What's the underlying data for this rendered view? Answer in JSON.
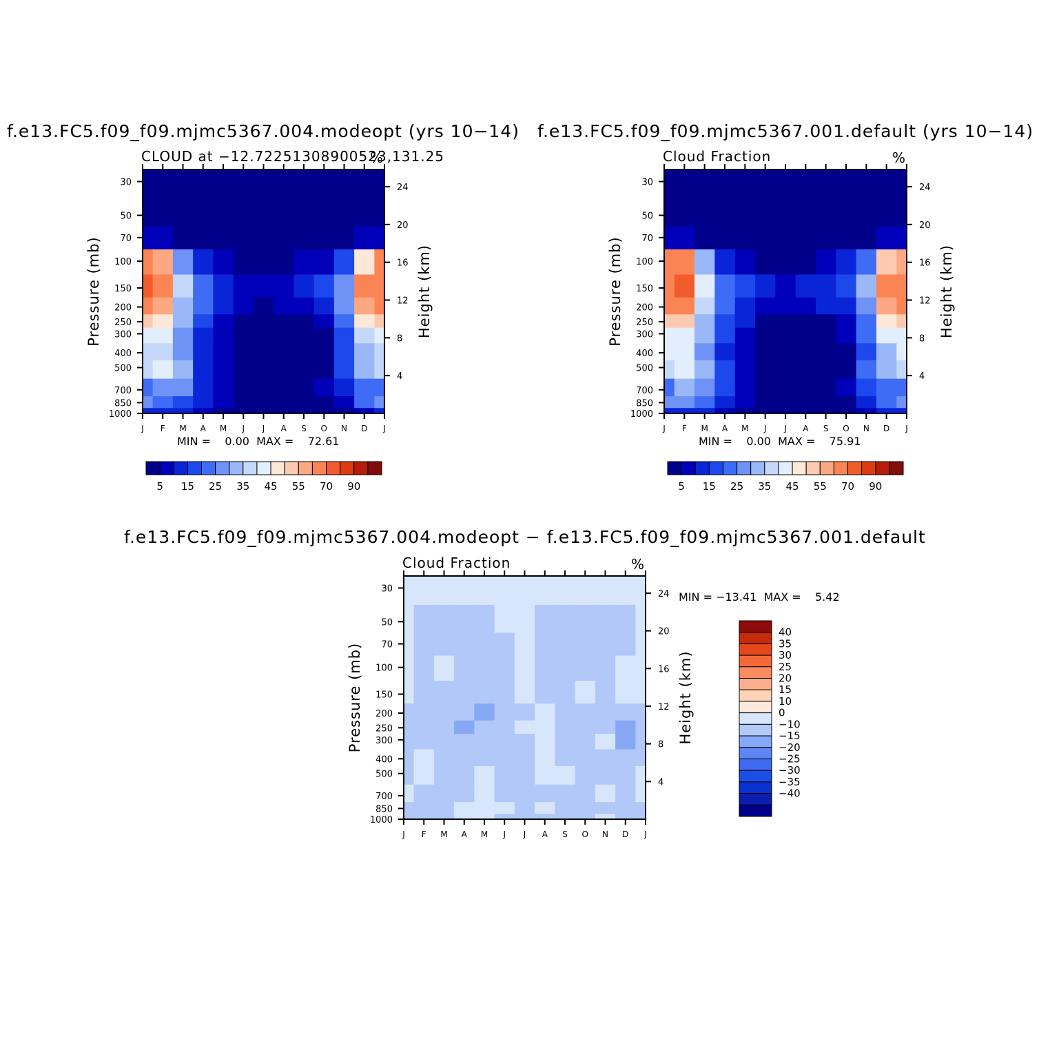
{
  "panels": [
    {
      "title": "f.e13.FC5.f09_f09.mjmc5367.004.modeopt (yrs 10−14)",
      "subtitle_left": "CLOUD at −12.72251308900523,131.25",
      "subtitle_right": "%",
      "ylabel_left": "Pressure (mb)",
      "ylabel_right": "Height (km)",
      "minmax_text": "MIN =    0.00  MAX =    72.61"
    },
    {
      "title": "f.e13.FC5.f09_f09.mjmc5367.001.default (yrs 10−14)",
      "subtitle_left": "Cloud Fraction",
      "subtitle_right": "%",
      "ylabel_left": "Pressure (mb)",
      "ylabel_right": "Height (km)",
      "minmax_text": "MIN =    0.00  MAX =    75.91"
    },
    {
      "title": "f.e13.FC5.f09_f09.mjmc5367.004.modeopt − f.e13.FC5.f09_f09.mjmc5367.001.default",
      "subtitle_left": "Cloud Fraction",
      "subtitle_right": "%",
      "ylabel_left": "Pressure (mb)",
      "ylabel_right": "Height (km)",
      "minmax_text": "MIN = −13.41  MAX =    5.42"
    }
  ],
  "chart_data": [
    {
      "type": "heatmap",
      "title": "f.e13.FC5.f09_f09.mjmc5367.004.modeopt (yrs 10−14)",
      "subtitle": "CLOUD at −12.72251308900523,131.25",
      "units": "%",
      "xlabel": "",
      "ylabel": "Pressure (mb)",
      "ylabel_right": "Height (km)",
      "x_categories": [
        "J",
        "F",
        "M",
        "A",
        "M",
        "J",
        "J",
        "A",
        "S",
        "O",
        "N",
        "D",
        "J"
      ],
      "y_pressure_ticks": [
        30,
        50,
        70,
        100,
        150,
        200,
        250,
        300,
        400,
        500,
        700,
        850,
        1000
      ],
      "y_height_ticks": [
        4,
        8,
        12,
        16,
        20,
        24
      ],
      "ylim": [
        1000,
        25
      ],
      "y_scale": "log",
      "levels_pressure": [
        30,
        50,
        70,
        100,
        150,
        200,
        250,
        300,
        400,
        500,
        700,
        850,
        1000
      ],
      "values": [
        [
          0,
          0,
          0,
          0,
          0,
          0,
          0,
          0,
          0,
          0,
          0,
          0,
          0
        ],
        [
          0,
          0,
          0,
          0,
          0,
          0,
          0,
          0,
          0,
          0,
          0,
          0,
          0
        ],
        [
          8,
          7,
          4,
          2,
          1,
          0,
          0,
          0,
          0,
          1,
          3,
          6,
          8
        ],
        [
          62,
          55,
          28,
          12,
          6,
          3,
          2,
          3,
          5,
          8,
          18,
          48,
          60
        ],
        [
          70,
          66,
          38,
          22,
          14,
          9,
          7,
          8,
          12,
          16,
          28,
          62,
          68
        ],
        [
          65,
          58,
          34,
          20,
          12,
          6,
          4,
          5,
          8,
          12,
          26,
          56,
          63
        ],
        [
          52,
          46,
          30,
          16,
          9,
          3,
          2,
          2,
          3,
          6,
          22,
          46,
          52
        ],
        [
          42,
          40,
          28,
          14,
          7,
          2,
          1,
          1,
          2,
          4,
          18,
          38,
          42
        ],
        [
          38,
          38,
          26,
          12,
          5,
          1,
          1,
          1,
          1,
          3,
          16,
          32,
          38
        ],
        [
          36,
          42,
          30,
          14,
          6,
          2,
          1,
          1,
          1,
          4,
          18,
          30,
          36
        ],
        [
          22,
          28,
          26,
          14,
          7,
          3,
          2,
          2,
          3,
          6,
          14,
          20,
          22
        ],
        [
          26,
          24,
          18,
          10,
          5,
          2,
          1,
          1,
          2,
          4,
          8,
          22,
          26
        ],
        [
          12,
          12,
          10,
          7,
          4,
          1,
          0,
          0,
          1,
          2,
          4,
          8,
          12
        ]
      ],
      "zlim": [
        0,
        72.61
      ],
      "colorbar": {
        "levels": [
          5,
          10,
          15,
          20,
          25,
          30,
          35,
          40,
          45,
          50,
          55,
          60,
          70,
          80,
          90
        ],
        "labels": [
          "5",
          "15",
          "25",
          "35",
          "45",
          "55",
          "70",
          "90"
        ],
        "colors": [
          "#00008b",
          "#0000bb",
          "#0a25d8",
          "#1c48ee",
          "#3f6cf5",
          "#6e92f5",
          "#9ab8f7",
          "#c4d8fa",
          "#e3eefc",
          "#fde8d8",
          "#fdcab0",
          "#fca882",
          "#fb8455",
          "#f25c2d",
          "#dd3b12",
          "#b61c0a",
          "#820c0c"
        ]
      },
      "min": 0.0,
      "max": 72.61
    },
    {
      "type": "heatmap",
      "title": "f.e13.FC5.f09_f09.mjmc5367.001.default (yrs 10−14)",
      "subtitle": "Cloud Fraction",
      "units": "%",
      "xlabel": "",
      "ylabel": "Pressure (mb)",
      "ylabel_right": "Height (km)",
      "x_categories": [
        "J",
        "F",
        "M",
        "A",
        "M",
        "J",
        "J",
        "A",
        "S",
        "O",
        "N",
        "D",
        "J"
      ],
      "y_pressure_ticks": [
        30,
        50,
        70,
        100,
        150,
        200,
        250,
        300,
        400,
        500,
        700,
        850,
        1000
      ],
      "y_height_ticks": [
        4,
        8,
        12,
        16,
        20,
        24
      ],
      "ylim": [
        1000,
        25
      ],
      "y_scale": "log",
      "levels_pressure": [
        30,
        50,
        70,
        100,
        150,
        200,
        250,
        300,
        400,
        500,
        700,
        850,
        1000
      ],
      "values": [
        [
          0,
          0,
          0,
          0,
          0,
          0,
          0,
          0,
          0,
          0,
          0,
          0,
          0
        ],
        [
          0,
          0,
          0,
          0,
          0,
          0,
          0,
          0,
          0,
          0,
          0,
          0,
          0
        ],
        [
          8,
          7,
          4,
          2,
          1,
          0,
          0,
          0,
          0,
          1,
          3,
          6,
          8
        ],
        [
          60,
          60,
          30,
          13,
          7,
          3,
          3,
          4,
          6,
          10,
          22,
          50,
          58
        ],
        [
          68,
          72,
          40,
          24,
          15,
          10,
          7,
          10,
          14,
          18,
          30,
          64,
          66
        ],
        [
          64,
          62,
          36,
          22,
          13,
          7,
          5,
          6,
          10,
          14,
          28,
          58,
          62
        ],
        [
          54,
          50,
          34,
          18,
          10,
          4,
          2,
          3,
          4,
          8,
          24,
          48,
          54
        ],
        [
          44,
          44,
          30,
          16,
          8,
          2,
          1,
          1,
          2,
          5,
          20,
          40,
          44
        ],
        [
          40,
          40,
          28,
          14,
          6,
          1,
          1,
          1,
          1,
          4,
          18,
          34,
          40
        ],
        [
          38,
          44,
          32,
          15,
          7,
          2,
          1,
          1,
          1,
          4,
          20,
          32,
          38
        ],
        [
          24,
          30,
          28,
          15,
          8,
          3,
          2,
          2,
          3,
          6,
          16,
          22,
          24
        ],
        [
          28,
          26,
          20,
          12,
          6,
          2,
          1,
          1,
          2,
          4,
          10,
          24,
          28
        ],
        [
          14,
          14,
          12,
          8,
          4,
          1,
          0,
          0,
          1,
          2,
          5,
          10,
          14
        ]
      ],
      "zlim": [
        0,
        75.91
      ],
      "colorbar": {
        "levels": [
          5,
          10,
          15,
          20,
          25,
          30,
          35,
          40,
          45,
          50,
          55,
          60,
          70,
          80,
          90
        ],
        "labels": [
          "5",
          "15",
          "25",
          "35",
          "45",
          "55",
          "70",
          "90"
        ],
        "colors": [
          "#00008b",
          "#0000bb",
          "#0a25d8",
          "#1c48ee",
          "#3f6cf5",
          "#6e92f5",
          "#9ab8f7",
          "#c4d8fa",
          "#e3eefc",
          "#fde8d8",
          "#fdcab0",
          "#fca882",
          "#fb8455",
          "#f25c2d",
          "#dd3b12",
          "#b61c0a",
          "#820c0c"
        ]
      },
      "min": 0.0,
      "max": 75.91
    },
    {
      "type": "heatmap",
      "title": "f.e13.FC5.f09_f09.mjmc5367.004.modeopt − f.e13.FC5.f09_f09.mjmc5367.001.default",
      "subtitle": "Cloud Fraction",
      "units": "%",
      "xlabel": "",
      "ylabel": "Pressure (mb)",
      "ylabel_right": "Height (km)",
      "x_categories": [
        "J",
        "F",
        "M",
        "A",
        "M",
        "J",
        "J",
        "A",
        "S",
        "O",
        "N",
        "D",
        "J"
      ],
      "y_pressure_ticks": [
        30,
        50,
        70,
        100,
        150,
        200,
        250,
        300,
        400,
        500,
        700,
        850,
        1000
      ],
      "y_height_ticks": [
        4,
        8,
        12,
        16,
        20,
        24
      ],
      "ylim": [
        1000,
        25
      ],
      "y_scale": "log",
      "levels_pressure": [
        30,
        50,
        70,
        100,
        150,
        200,
        250,
        300,
        400,
        500,
        700,
        850,
        1000
      ],
      "values": [
        [
          2,
          2,
          2,
          2,
          2,
          2,
          2,
          2,
          2,
          2,
          2,
          2,
          2
        ],
        [
          2,
          -3,
          -3,
          -3,
          -3,
          2,
          2,
          -3,
          -3,
          -3,
          -3,
          -3,
          2
        ],
        [
          2,
          -3,
          -3,
          -3,
          -3,
          -1,
          2,
          -3,
          -3,
          -3,
          -3,
          -3,
          2
        ],
        [
          2,
          -3,
          2,
          -3,
          -3,
          -2,
          2,
          -3,
          -3,
          -3,
          -3,
          2,
          2
        ],
        [
          2,
          -3,
          -3,
          -3,
          -4,
          -3,
          2,
          -3,
          -3,
          2,
          -3,
          2,
          2
        ],
        [
          -3,
          -3,
          -3,
          -3,
          -11,
          -3,
          -2,
          2,
          -3,
          -3,
          -3,
          -3,
          -3
        ],
        [
          -3,
          -3,
          -3,
          -12,
          -3,
          -3,
          2,
          2,
          -3,
          -3,
          -3,
          -11,
          -3
        ],
        [
          -3,
          -3,
          -3,
          -3,
          -3,
          -3,
          -3,
          2,
          -3,
          -3,
          2,
          -12,
          -3
        ],
        [
          -3,
          2,
          -3,
          -3,
          -3,
          -3,
          -3,
          2,
          -3,
          -3,
          -3,
          -3,
          -3
        ],
        [
          -3,
          2,
          -3,
          -3,
          2,
          -3,
          -3,
          2,
          2,
          -3,
          -3,
          -3,
          2
        ],
        [
          2,
          -3,
          -3,
          -3,
          2,
          -3,
          -3,
          -3,
          -3,
          -3,
          2,
          -3,
          2
        ],
        [
          -3,
          -3,
          -3,
          2,
          2,
          2,
          -3,
          2,
          -3,
          -3,
          -3,
          -3,
          -3
        ],
        [
          -3,
          -3,
          -3,
          2,
          2,
          -3,
          -3,
          -3,
          -3,
          -3,
          2,
          -3,
          -3
        ]
      ],
      "zlim": [
        -13.41,
        5.42
      ],
      "colorbar": {
        "levels": [
          -40,
          -35,
          -30,
          -25,
          -20,
          -15,
          -10,
          0,
          10,
          15,
          20,
          25,
          30,
          35,
          40
        ],
        "labels": [
          "40",
          "35",
          "30",
          "25",
          "20",
          "15",
          "10",
          "0",
          "−10",
          "−15",
          "−20",
          "−25",
          "−30",
          "−35",
          "−40"
        ],
        "colors": [
          "#00008b",
          "#0a1fb0",
          "#0a31d4",
          "#1a4ee8",
          "#3d6aef",
          "#5e86f2",
          "#87a8f5",
          "#b1c8f8",
          "#d7e6fb",
          "#fdeadb",
          "#fdd3b8",
          "#fcaf8c",
          "#fb8c60",
          "#f46a36",
          "#e4471b",
          "#c72a0d",
          "#8e0c0c"
        ]
      },
      "min": -13.41,
      "max": 5.42
    }
  ]
}
